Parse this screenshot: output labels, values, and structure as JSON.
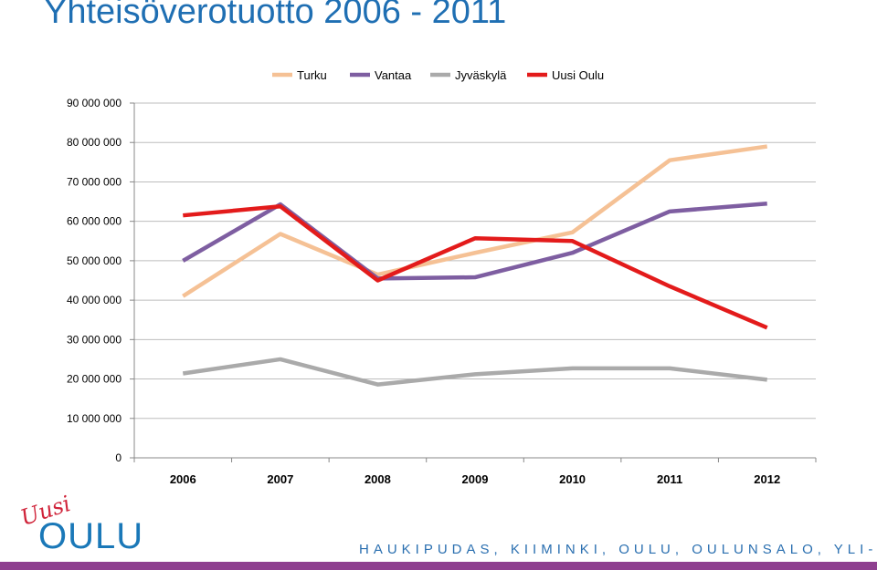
{
  "page": {
    "title": "Yhteisöverotuotto 2006 - 2011",
    "footer_text": "HAUKIPUDAS, KIIMINKI, OULU, OULUNSALO, YLI-II"
  },
  "logo": {
    "script_text": "Uusi",
    "main_text": "OULU"
  },
  "colors": {
    "turku": "#f5c195",
    "vantaa": "#7e5ea1",
    "jyvaskyla": "#aaaaaa",
    "uusi_oulu": "#e31b1b",
    "title": "#1f6fb3",
    "footer_bar": "#8e3f8f"
  },
  "chart_data": {
    "type": "line",
    "title": "Yhteisöverotuotto 2006 - 2011",
    "xlabel": "",
    "ylabel": "",
    "x": [
      "2006",
      "2007",
      "2008",
      "2009",
      "2010",
      "2011",
      "2012"
    ],
    "ylim": [
      0,
      90000000
    ],
    "yticks": [
      0,
      10000000,
      20000000,
      30000000,
      40000000,
      50000000,
      60000000,
      70000000,
      80000000,
      90000000
    ],
    "ytick_labels": [
      "0",
      "10 000 000",
      "20 000 000",
      "30 000 000",
      "40 000 000",
      "50 000 000",
      "60 000 000",
      "70 000 000",
      "80 000 000",
      "90 000 000"
    ],
    "grid": true,
    "legend_position": "top",
    "series": [
      {
        "name": "Turku",
        "color": "#f5c195",
        "values": [
          41000000,
          56800000,
          46500000,
          52000000,
          57200000,
          75500000,
          79000000
        ]
      },
      {
        "name": "Vantaa",
        "color": "#7e5ea1",
        "values": [
          50000000,
          64300000,
          45500000,
          45800000,
          52000000,
          62500000,
          64500000
        ]
      },
      {
        "name": "Jyväskylä",
        "color": "#aaaaaa",
        "values": [
          21400000,
          25000000,
          18600000,
          21200000,
          22700000,
          22700000,
          19800000
        ]
      },
      {
        "name": "Uusi Oulu",
        "color": "#e31b1b",
        "values": [
          61500000,
          63800000,
          45000000,
          55700000,
          55000000,
          43500000,
          33000000
        ]
      }
    ]
  }
}
